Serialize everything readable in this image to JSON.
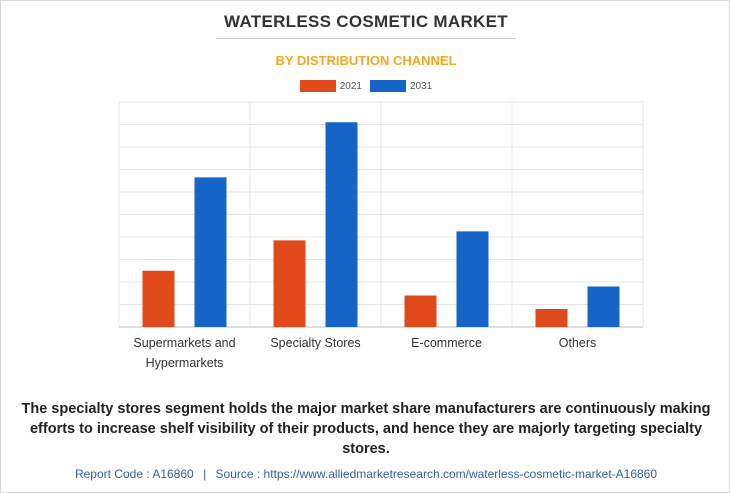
{
  "header": {
    "title": "WATERLESS COSMETIC MARKET",
    "subtitle": "BY DISTRIBUTION CHANNEL"
  },
  "caption": "The specialty stores segment holds the major market share manufacturers are continuously making efforts to increase shelf visibility of their products, and hence they are majorly targeting specialty stores.",
  "footer": {
    "report_code": "Report Code : A16860",
    "separator": "|",
    "source": "Source : https://www.alliedmarketresearch.com/waterless-cosmetic-market-A16860"
  },
  "colors": {
    "series_2021": "#e04a1a",
    "series_2031": "#1565c8",
    "grid": "#e4e4e4",
    "axis": "#bdbdbd"
  },
  "chart_data": {
    "type": "bar",
    "title": "WATERLESS COSMETIC MARKET",
    "subtitle": "BY DISTRIBUTION CHANNEL",
    "categories": [
      [
        "Supermarkets and",
        "Hypermarkets"
      ],
      [
        "Specialty Stores"
      ],
      [
        "E-commerce"
      ],
      [
        "Others"
      ]
    ],
    "series": [
      {
        "name": "2021",
        "values": [
          2.5,
          3.85,
          1.4,
          0.8
        ]
      },
      {
        "name": "2031",
        "values": [
          6.65,
          9.1,
          4.25,
          1.8
        ]
      }
    ],
    "ylim": [
      0,
      10
    ],
    "xlabel": "",
    "ylabel": "",
    "grid": true,
    "y_ticks_shown": false,
    "legend": "top-center"
  }
}
